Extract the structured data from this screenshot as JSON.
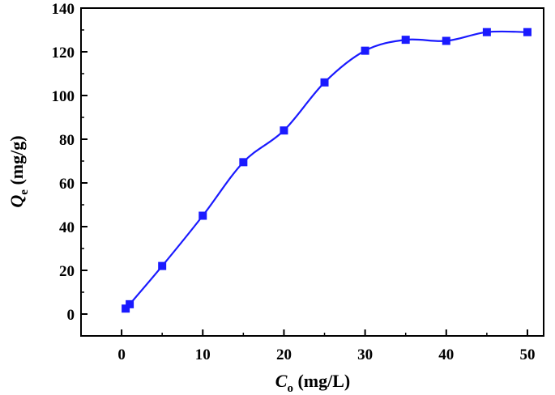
{
  "chart_data": {
    "type": "line",
    "title": "",
    "xlabel": {
      "symbol": "C",
      "subscript": "o",
      "unit": " (mg/L)"
    },
    "ylabel": {
      "symbol": "Q",
      "subscript": "e",
      "unit": " (mg/g)"
    },
    "xlim": [
      -5,
      52
    ],
    "ylim": [
      -10,
      140
    ],
    "xticks": [
      0,
      10,
      20,
      30,
      40,
      50
    ],
    "yticks": [
      0,
      20,
      40,
      60,
      80,
      100,
      120,
      140
    ],
    "grid": false,
    "legend": "none",
    "series": [
      {
        "color": "#1a1aff",
        "marker": "square",
        "line": "smooth",
        "x": [
          0.5,
          1,
          5,
          10,
          15,
          20,
          25,
          30,
          35,
          40,
          45,
          50
        ],
        "y": [
          2.5,
          4.5,
          22,
          45,
          69.5,
          84,
          106,
          120.5,
          125.5,
          125,
          129,
          129
        ]
      }
    ]
  }
}
